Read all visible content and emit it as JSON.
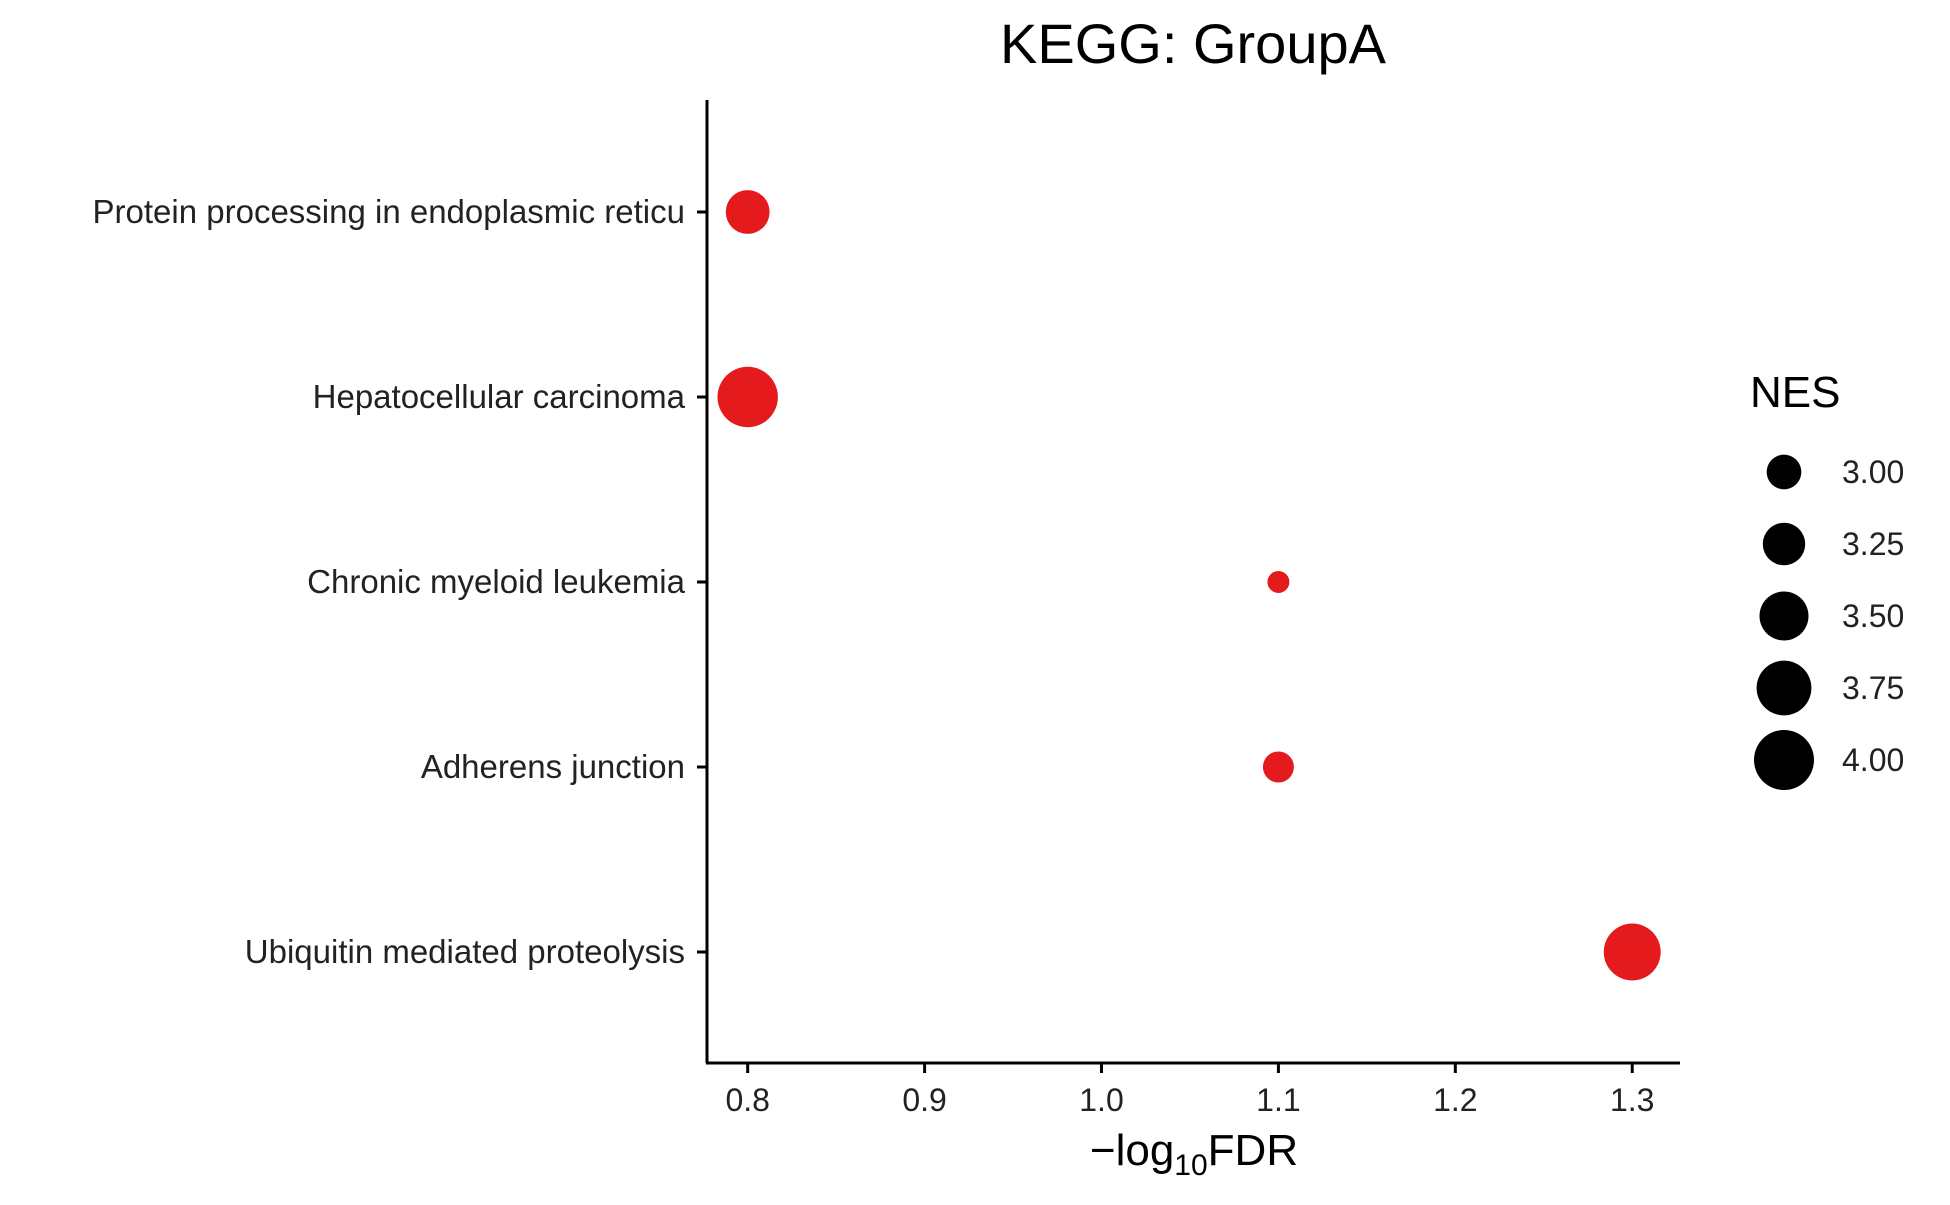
{
  "chart_data": {
    "type": "scatter",
    "title": "KEGG: GroupA",
    "xlabel": {
      "prefix": "−log",
      "subscript": "10",
      "suffix": "FDR"
    },
    "ylabel": "",
    "xlim": [
      0.777,
      1.327
    ],
    "x_ticks": [
      0.8,
      0.9,
      1.0,
      1.1,
      1.2,
      1.3
    ],
    "x_tick_labels": [
      "0.8",
      "0.9",
      "1.0",
      "1.1",
      "1.2",
      "1.3"
    ],
    "categories": [
      "Protein processing in endoplasmic reticu",
      "Hepatocellular carcinoma",
      "Chronic myeloid leukemia",
      "Adherens junction",
      "Ubiquitin mediated proteolysis"
    ],
    "points": [
      {
        "category": "Protein processing in endoplasmic reticu",
        "x": 0.8,
        "nes": 3.3
      },
      {
        "category": "Hepatocellular carcinoma",
        "x": 0.8,
        "nes": 4.02
      },
      {
        "category": "Chronic myeloid leukemia",
        "x": 1.1,
        "nes": 2.7
      },
      {
        "category": "Adherens junction",
        "x": 1.1,
        "nes": 2.9
      },
      {
        "category": "Ubiquitin mediated proteolysis",
        "x": 1.3,
        "nes": 3.85
      }
    ],
    "point_color": "#e41a1c",
    "grid": false,
    "legend": {
      "title": "NES",
      "position": "right",
      "color": "#000000",
      "entries": [
        {
          "value": 3.0,
          "label": "3.00"
        },
        {
          "value": 3.25,
          "label": "3.25"
        },
        {
          "value": 3.5,
          "label": "3.50"
        },
        {
          "value": 3.75,
          "label": "3.75"
        },
        {
          "value": 4.0,
          "label": "4.00"
        }
      ]
    }
  }
}
